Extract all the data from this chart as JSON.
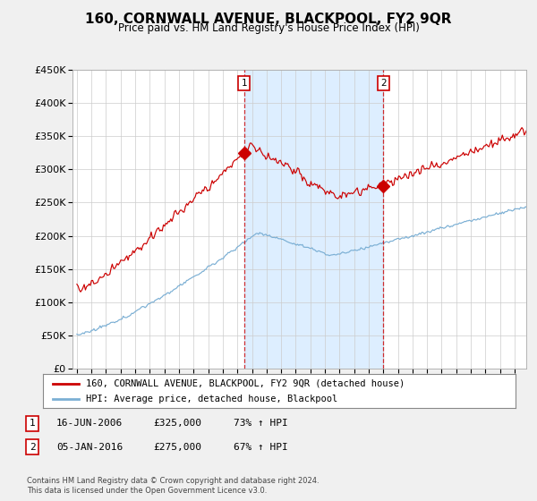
{
  "title": "160, CORNWALL AVENUE, BLACKPOOL, FY2 9QR",
  "subtitle": "Price paid vs. HM Land Registry's House Price Index (HPI)",
  "red_label": "160, CORNWALL AVENUE, BLACKPOOL, FY2 9QR (detached house)",
  "blue_label": "HPI: Average price, detached house, Blackpool",
  "red_color": "#cc0000",
  "blue_color": "#7bafd4",
  "sale1_date": "16-JUN-2006",
  "sale1_price": 325000,
  "sale1_hpi": "73% ↑ HPI",
  "sale2_date": "05-JAN-2016",
  "sale2_price": 275000,
  "sale2_hpi": "67% ↑ HPI",
  "ylim": [
    0,
    450000
  ],
  "yticks": [
    0,
    50000,
    100000,
    150000,
    200000,
    250000,
    300000,
    350000,
    400000,
    450000
  ],
  "bg_color": "#f0f0f0",
  "plot_bg": "#ffffff",
  "shade_color": "#ddeeff",
  "footer": "Contains HM Land Registry data © Crown copyright and database right 2024.\nThis data is licensed under the Open Government Licence v3.0."
}
